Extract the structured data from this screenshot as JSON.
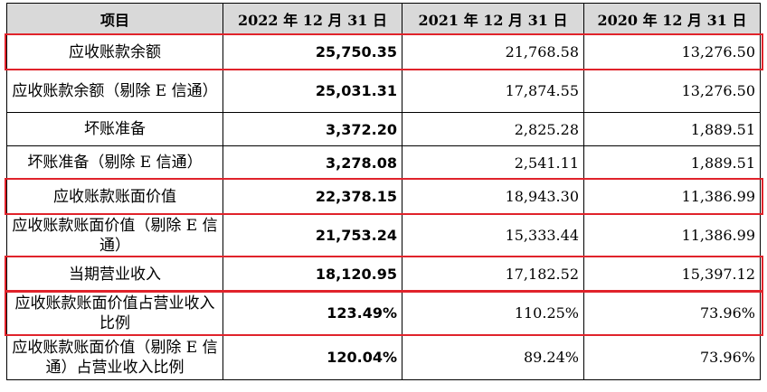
{
  "headers": [
    "项目",
    "2022 年 12 月 31 日",
    "2021 年 12 月 31 日",
    "2020 年 12 月 31 日"
  ],
  "rows": [
    {
      "label": "应收账款余额",
      "y2022": "25,750.35",
      "y2021": "21,768.58",
      "y2020": "13,276.50",
      "highlighted": true
    },
    {
      "label": "应收账款余额（剔除 E 信通）",
      "y2022": "25,031.31",
      "y2021": "17,874.55",
      "y2020": "13,276.50",
      "highlighted": false
    },
    {
      "label": "坏账准备",
      "y2022": "3,372.20",
      "y2021": "2,825.28",
      "y2020": "1,889.51",
      "highlighted": false
    },
    {
      "label": "坏账准备（剔除 E 信通）",
      "y2022": "3,278.08",
      "y2021": "2,541.11",
      "y2020": "1,889.51",
      "highlighted": false
    },
    {
      "label": "应收账款账面价值",
      "y2022": "22,378.15",
      "y2021": "18,943.30",
      "y2020": "11,386.99",
      "highlighted": true
    },
    {
      "label": "应收账款账面价值（剔除 E 信通）",
      "y2022": "21,753.24",
      "y2021": "15,333.44",
      "y2020": "11,386.99",
      "highlighted": false
    },
    {
      "label": "当期营业收入",
      "y2022": "18,120.95",
      "y2021": "17,182.52",
      "y2020": "15,397.12",
      "highlighted": true
    },
    {
      "label": "应收账款账面价值占营业收入比例",
      "y2022": "123.49%",
      "y2021": "110.25%",
      "y2020": "73.96%",
      "highlighted": true
    },
    {
      "label": "应收账款账面价值（剔除 E 信通）占营业收入比例",
      "y2022": "120.04%",
      "y2021": "89.24%",
      "y2020": "73.96%",
      "highlighted": false
    }
  ],
  "colors": {
    "header_bg": "#d9d9d9",
    "highlight_border": "#e0232b"
  }
}
